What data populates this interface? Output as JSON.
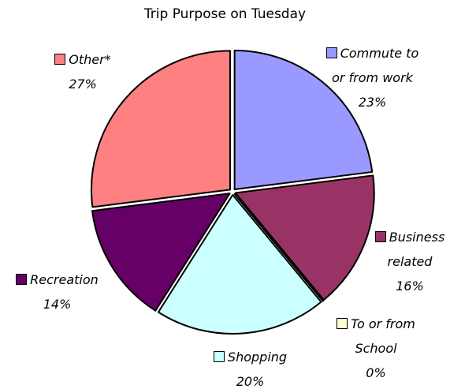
{
  "chart_data": {
    "type": "pie",
    "title": "Trip Purpose on Tuesday",
    "categories": [
      "Commute to or from work",
      "Business related",
      "To or from School",
      "Shopping",
      "Recreation",
      "Other*"
    ],
    "values": [
      23,
      16,
      0,
      20,
      14,
      27
    ],
    "value_labels": [
      "23%",
      "16%",
      "0%",
      "20%",
      "14%",
      "27%"
    ],
    "colors": [
      "#9999ff",
      "#993366",
      "#ffffcc",
      "#ccffff",
      "#660066",
      "#ff8080"
    ]
  }
}
